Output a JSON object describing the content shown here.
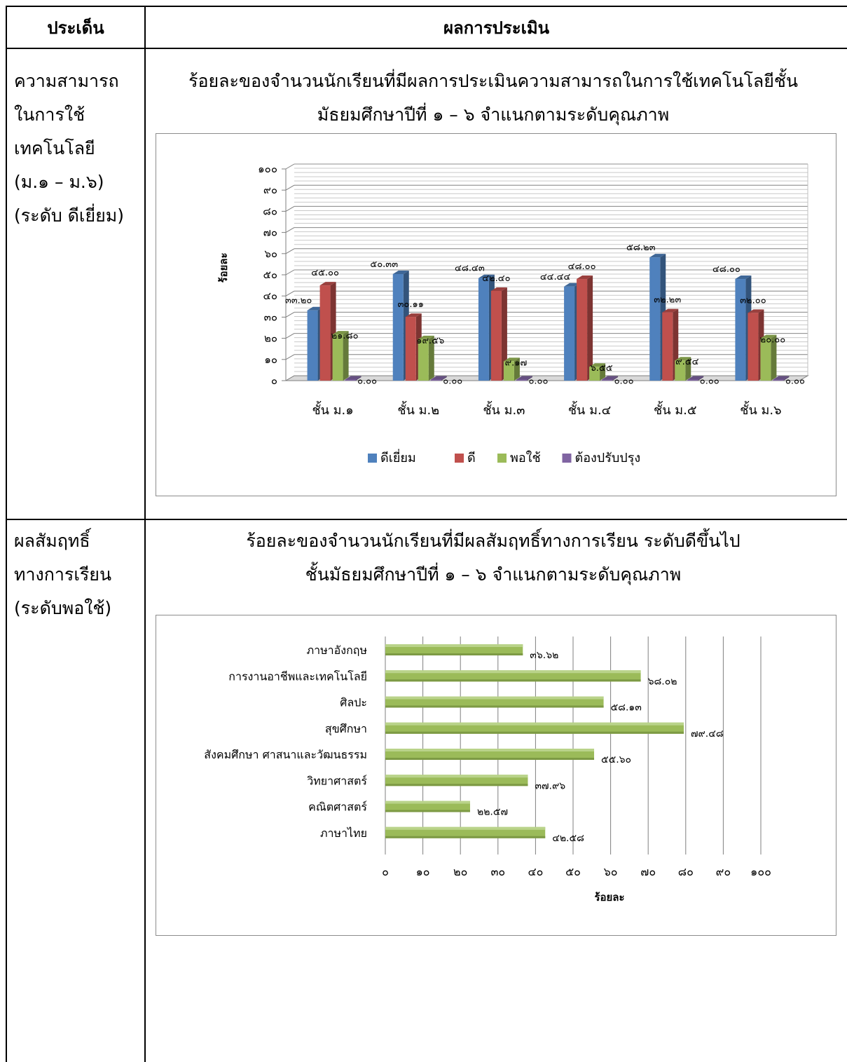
{
  "header": {
    "issue": "ประเด็น",
    "result": "ผลการประเมิน"
  },
  "rows": [
    {
      "issue_lines": [
        "ความสามารถ",
        "ในการใช้",
        "เทคโนโลยี",
        "(ม.๑ – ม.๖)",
        "(ระดับ ดีเยี่ยม)"
      ],
      "title_lines": [
        "ร้อยละของจำนวนนักเรียนที่มีผลการประเมินความสามารถในการใช้เทคโนโลยีชั้น",
        "มัธยมศึกษาปีที่ ๑ – ๖   จำแนกตามระดับคุณภาพ"
      ]
    },
    {
      "issue_lines": [
        "ผลสัมฤทธิ์",
        "ทางการเรียน",
        "(ระดับพอใช้)"
      ],
      "title_lines": [
        "ร้อยละของจำนวนนักเรียนที่มีผลสัมฤทธิ์ทางการเรียน ระดับดีขึ้นไป",
        "ชั้นมัธยมศึกษาปีที่ ๑ – ๖   จำแนกตามระดับคุณภาพ"
      ]
    }
  ],
  "chart_data": [
    {
      "type": "bar",
      "ylabel": "ร้อยละ",
      "ylim": [
        0,
        100
      ],
      "yticks": [
        "๐",
        "๑๐",
        "๒๐",
        "๓๐",
        "๔๐",
        "๕๐",
        "๖๐",
        "๗๐",
        "๘๐",
        "๙๐",
        "๑๐๐"
      ],
      "categories": [
        "ชั้น ม.๑",
        "ชั้น ม.๒",
        "ชั้น ม.๓",
        "ชั้น ม.๔",
        "ชั้น ม.๕",
        "ชั้น ม.๖"
      ],
      "series": [
        {
          "name": "ดีเยี่ยม",
          "color": "#4f81bd",
          "values": [
            33.2,
            50.33,
            48.43,
            44.44,
            58.23,
            48.0
          ],
          "labels": [
            "๓๓.๒๐",
            "๕๐.๓๓",
            "๔๘.๔๓",
            "๔๔.๔๔",
            "๕๘.๒๓",
            "๔๘.๐๐"
          ]
        },
        {
          "name": "ดี",
          "color": "#c0504d",
          "values": [
            45.0,
            30.11,
            42.4,
            48.0,
            32.23,
            32.0
          ],
          "labels": [
            "๔๕.๐๐",
            "๓๐.๑๑",
            "๔๒.๔๐",
            "๔๘.๐๐",
            "๓๒.๒๓",
            "๓๒.๐๐"
          ]
        },
        {
          "name": "พอใช้",
          "color": "#9bbb59",
          "values": [
            21.8,
            19.56,
            9.17,
            6.55,
            9.54,
            20.0
          ],
          "labels": [
            "๒๑.๘๐",
            "๑๙.๕๖",
            "๙.๑๗",
            "๖.๕๕",
            "๙.๕๔",
            "๒๐.๐๐"
          ]
        },
        {
          "name": "ต้องปรับปรุง",
          "color": "#8064a2",
          "values": [
            0,
            0,
            0,
            0,
            0,
            0
          ],
          "labels": [
            "๐.๐๐",
            "๐.๐๐",
            "๐.๐๐",
            "๐.๐๐",
            "๐.๐๐",
            "๐.๐๐"
          ]
        }
      ],
      "legend": "bottom",
      "grid": true
    },
    {
      "type": "bar",
      "orientation": "horizontal",
      "xlabel": "ร้อยละ",
      "xlim": [
        0,
        100
      ],
      "xticks": [
        "๐",
        "๑๐",
        "๒๐",
        "๓๐",
        "๔๐",
        "๕๐",
        "๖๐",
        "๗๐",
        "๘๐",
        "๙๐",
        "๑๐๐"
      ],
      "categories": [
        "ภาษาอังกฤษ",
        "การงานอาชีพและเทคโนโลยี",
        "ศิลปะ",
        "สุขศึกษา",
        "สังคมศึกษา ศาสนาและวัฒนธรรม",
        "วิทยาศาสตร์",
        "คณิตศาสตร์",
        "ภาษาไทย"
      ],
      "values": [
        36.62,
        68.02,
        58.13,
        79.48,
        55.6,
        37.96,
        22.57,
        42.58
      ],
      "labels": [
        "๓๖.๖๒",
        "๖๘.๐๒",
        "๕๘.๑๓",
        "๗๙.๔๘",
        "๕๕.๖๐",
        "๓๗.๙๖",
        "๒๒.๕๗",
        "๔๒.๕๘"
      ],
      "color": "#9bbb59",
      "grid": true
    }
  ]
}
